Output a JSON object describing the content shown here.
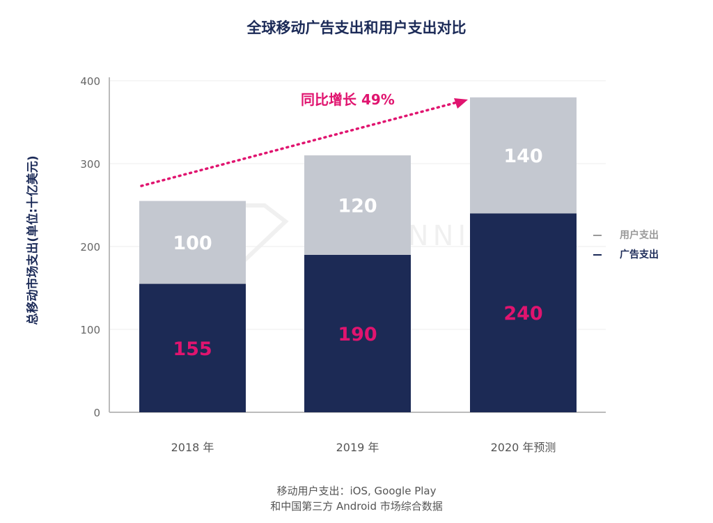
{
  "chart_data": {
    "type": "bar",
    "stacked": true,
    "title": "全球移动广告支出和用户支出对比",
    "ylabel": "总移动市场支出(单位:十亿美元)",
    "xlabel": "",
    "categories": [
      "2018 年",
      "2019 年",
      "2020 年预测"
    ],
    "series": [
      {
        "name": "广告支出",
        "values": [
          155,
          190,
          240
        ],
        "color": "#1c2a55",
        "label_color": "#e0146f"
      },
      {
        "name": "用户支出",
        "values": [
          100,
          120,
          140
        ],
        "color": "#c4c8d0",
        "label_color": "#ffffff"
      }
    ],
    "ylim": [
      0,
      400
    ],
    "yticks": [
      0,
      100,
      200,
      300,
      400
    ],
    "grid": true,
    "legend_position": "right",
    "annotation": {
      "text": "同比增长 49%",
      "color": "#e0146f"
    },
    "watermark": "APP ANNIE"
  },
  "footnote": [
    "移动用户支出：iOS, Google Play",
    "和中国第三方 Android 市场综合数据"
  ]
}
